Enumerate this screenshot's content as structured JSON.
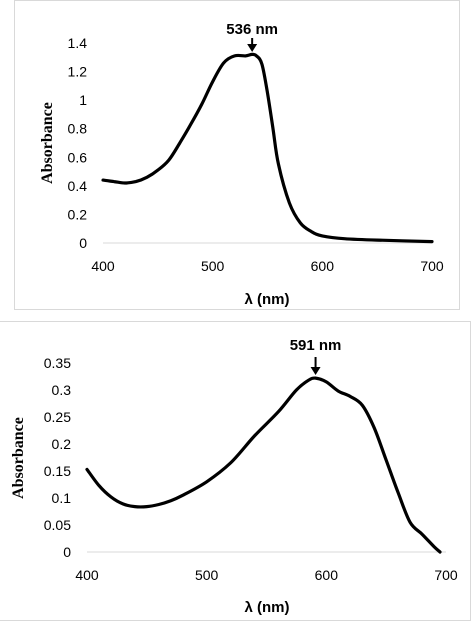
{
  "chart_data": [
    {
      "type": "line",
      "xlabel": "λ (nm)",
      "ylabel": "Absorbance",
      "xlim": [
        400,
        700
      ],
      "ylim": [
        0,
        1.4
      ],
      "x_ticks": [
        "400",
        "500",
        "600",
        "700"
      ],
      "y_ticks": [
        "0",
        "0.2",
        "0.4",
        "0.6",
        "0.8",
        "1",
        "1.2",
        "1.4"
      ],
      "grid": false,
      "annotation": {
        "text": "536 nm",
        "x": 536
      },
      "series": [
        {
          "x": [
            400,
            410,
            420,
            430,
            440,
            450,
            460,
            470,
            480,
            490,
            500,
            510,
            520,
            530,
            536,
            540,
            545,
            550,
            555,
            560,
            570,
            580,
            590,
            600,
            620,
            650,
            700
          ],
          "y": [
            0.44,
            0.43,
            0.42,
            0.43,
            0.46,
            0.51,
            0.58,
            0.7,
            0.83,
            0.97,
            1.13,
            1.26,
            1.31,
            1.31,
            1.32,
            1.31,
            1.25,
            1.05,
            0.8,
            0.55,
            0.28,
            0.14,
            0.08,
            0.05,
            0.03,
            0.02,
            0.01
          ]
        }
      ],
      "color": "#000000"
    },
    {
      "type": "line",
      "xlabel": "λ (nm)",
      "ylabel": "Absorbance",
      "xlim": [
        400,
        700
      ],
      "ylim": [
        0,
        0.35
      ],
      "x_ticks": [
        "400",
        "500",
        "600",
        "700"
      ],
      "y_ticks": [
        "0",
        "0.05",
        "0.1",
        "0.15",
        "0.2",
        "0.25",
        "0.3",
        "0.35"
      ],
      "grid": false,
      "annotation": {
        "text": "591 nm",
        "x": 591
      },
      "series": [
        {
          "x": [
            400,
            410,
            420,
            430,
            440,
            450,
            460,
            470,
            480,
            500,
            520,
            540,
            560,
            575,
            585,
            591,
            600,
            610,
            620,
            630,
            640,
            650,
            660,
            670,
            680,
            690,
            695
          ],
          "y": [
            0.153,
            0.123,
            0.102,
            0.089,
            0.084,
            0.084,
            0.088,
            0.095,
            0.105,
            0.13,
            0.165,
            0.215,
            0.26,
            0.3,
            0.318,
            0.322,
            0.315,
            0.298,
            0.288,
            0.272,
            0.23,
            0.17,
            0.11,
            0.055,
            0.033,
            0.01,
            0.0
          ]
        }
      ],
      "color": "#000000"
    }
  ]
}
